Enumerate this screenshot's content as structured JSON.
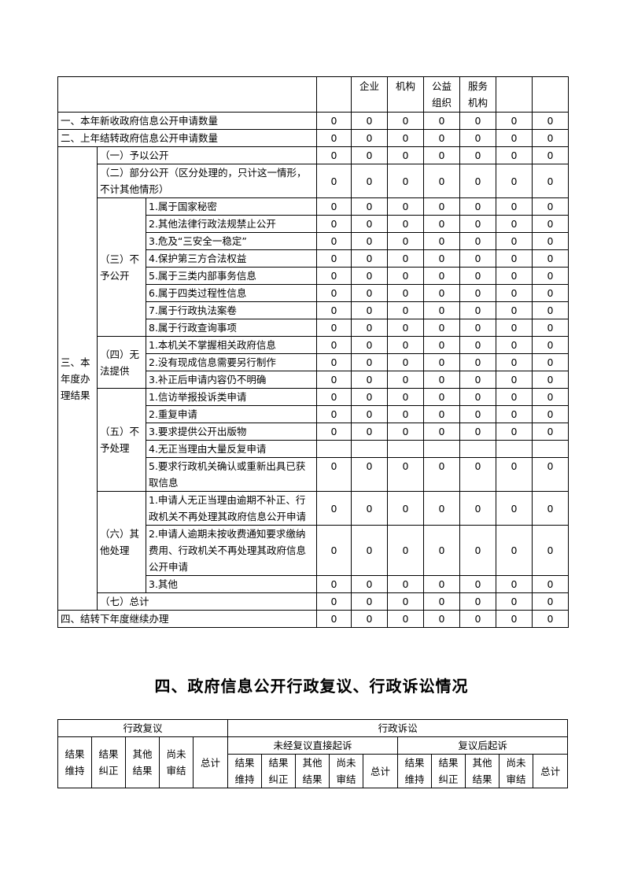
{
  "table1": {
    "header": [
      "",
      "企业",
      "机构",
      "公益\n组织",
      "服务\n机构",
      "",
      ""
    ],
    "top_rows": [
      {
        "label": "一、本年新收政府信息公开申请数量",
        "values": [
          "0",
          "0",
          "0",
          "0",
          "0",
          "0",
          "0"
        ]
      },
      {
        "label": "二、上年结转政府信息公开申请数量",
        "values": [
          "0",
          "0",
          "0",
          "0",
          "0",
          "0",
          "0"
        ]
      }
    ],
    "section3": {
      "label": "三、本\n年度办\n理结果",
      "items": [
        {
          "label": "（一）予以公开",
          "values": [
            "0",
            "0",
            "0",
            "0",
            "0",
            "0",
            "0"
          ]
        },
        {
          "label": "（二）部分公开（区分处理的，只计这一情形，不计其他情形）",
          "values": [
            "0",
            "0",
            "0",
            "0",
            "0",
            "0",
            "0"
          ]
        },
        {
          "label": "（三）不\n予公开",
          "subitems": [
            {
              "label": "1.属于国家秘密",
              "values": [
                "0",
                "0",
                "0",
                "0",
                "0",
                "0",
                "0"
              ]
            },
            {
              "label": "2.其他法律行政法规禁止公开",
              "values": [
                "0",
                "0",
                "0",
                "0",
                "0",
                "0",
                "0"
              ]
            },
            {
              "label": "3.危及“三安全一稳定”",
              "values": [
                "0",
                "0",
                "0",
                "0",
                "0",
                "0",
                "0"
              ]
            },
            {
              "label": "4.保护第三方合法权益",
              "values": [
                "0",
                "0",
                "0",
                "0",
                "0",
                "0",
                "0"
              ]
            },
            {
              "label": "5.属于三类内部事务信息",
              "values": [
                "0",
                "0",
                "0",
                "0",
                "0",
                "0",
                "0"
              ]
            },
            {
              "label": "6.属于四类过程性信息",
              "values": [
                "0",
                "0",
                "0",
                "0",
                "0",
                "0",
                "0"
              ]
            },
            {
              "label": "7.属于行政执法案卷",
              "values": [
                "0",
                "0",
                "0",
                "0",
                "0",
                "0",
                "0"
              ]
            },
            {
              "label": "8.属于行政查询事项",
              "values": [
                "0",
                "0",
                "0",
                "0",
                "0",
                "0",
                "0"
              ]
            }
          ]
        },
        {
          "label": "（四）无\n法提供",
          "subitems": [
            {
              "label": "1.本机关不掌握相关政府信息",
              "values": [
                "0",
                "0",
                "0",
                "0",
                "0",
                "0",
                "0"
              ]
            },
            {
              "label": "2.没有现成信息需要另行制作",
              "values": [
                "0",
                "0",
                "0",
                "0",
                "0",
                "0",
                "0"
              ]
            },
            {
              "label": "3.补正后申请内容仍不明确",
              "values": [
                "0",
                "0",
                "0",
                "0",
                "0",
                "0",
                "0"
              ]
            }
          ]
        },
        {
          "label": "（五）不\n予处理",
          "subitems": [
            {
              "label": "1.信访举报投诉类申请",
              "values": [
                "0",
                "0",
                "0",
                "0",
                "0",
                "0",
                "0"
              ]
            },
            {
              "label": "2.重复申请",
              "values": [
                "0",
                "0",
                "0",
                "0",
                "0",
                "0",
                "0"
              ]
            },
            {
              "label": "3.要求提供公开出版物",
              "values": [
                "0",
                "0",
                "0",
                "0",
                "0",
                "0",
                "0"
              ]
            },
            {
              "label": "4.无正当理由大量反复申请",
              "values": [
                "",
                "",
                "",
                "",
                "",
                "",
                ""
              ]
            },
            {
              "label": "5.要求行政机关确认或重新出具已获取信息",
              "values": [
                "0",
                "0",
                "0",
                "0",
                "0",
                "0",
                "0"
              ],
              "top": true
            }
          ]
        },
        {
          "label": "（六）其\n他处理",
          "subitems": [
            {
              "label": "1.申请人无正当理由逾期不补正、行政机关不再处理其政府信息公开申请",
              "values": [
                "0",
                "0",
                "0",
                "0",
                "0",
                "0",
                "0"
              ]
            },
            {
              "label": "2.申请人逾期未按收费通知要求缴纳费用、行政机关不再处理其政府信息公开申请",
              "values": [
                "0",
                "0",
                "0",
                "0",
                "0",
                "0",
                "0"
              ]
            },
            {
              "label": "3.其他",
              "values": [
                "0",
                "0",
                "0",
                "0",
                "0",
                "0",
                "0"
              ]
            }
          ]
        },
        {
          "label": "（七）总计",
          "values": [
            "0",
            "0",
            "0",
            "0",
            "0",
            "0",
            "0"
          ]
        }
      ]
    },
    "bottom_row": {
      "label": "四、结转下年度继续办理",
      "values": [
        "0",
        "0",
        "0",
        "0",
        "0",
        "0",
        "0"
      ]
    }
  },
  "section_title": "四、政府信息公开行政复议、行政诉讼情况",
  "table2": {
    "review": "行政复议",
    "litigation": "行政诉讼",
    "direct": "未经复议直接起诉",
    "after_review": "复议后起诉",
    "cols": [
      "结果\n维持",
      "结果\n纠正",
      "其他\n结果",
      "尚未\n审结",
      "总计"
    ]
  }
}
